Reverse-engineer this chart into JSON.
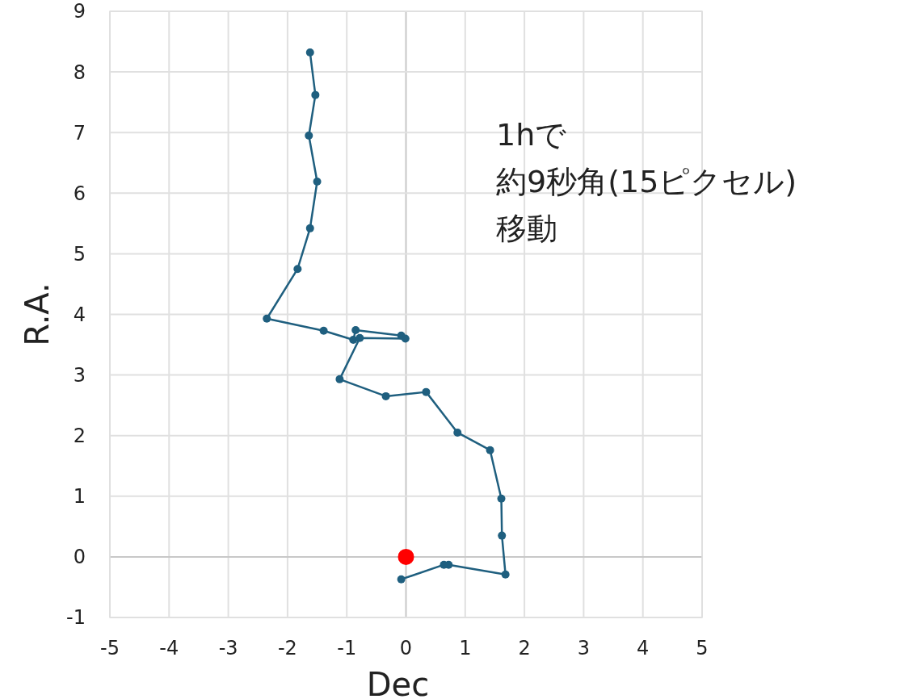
{
  "chart_data": {
    "type": "line",
    "xlabel": "Dec",
    "ylabel": "R.A.",
    "xlim": [
      -5,
      5
    ],
    "ylim": [
      -1,
      9
    ],
    "xticks": [
      -5,
      -4,
      -3,
      -2,
      -1,
      0,
      1,
      2,
      3,
      4,
      5
    ],
    "yticks": [
      -1,
      0,
      1,
      2,
      3,
      4,
      5,
      6,
      7,
      8,
      9
    ],
    "grid": true,
    "marker": "circle",
    "line_style": "solid",
    "annotations": [
      "1hで",
      "約9秒角(15ピクセル)",
      "移動"
    ],
    "series": [
      {
        "color": "#1f5f7f",
        "x": [
          -1.62,
          -1.53,
          -1.64,
          -1.5,
          -1.62,
          -1.83,
          -2.35,
          -1.39,
          -0.89,
          -0.85,
          -0.08,
          -0.01,
          -0.78,
          -1.12,
          -0.34,
          0.34,
          0.87,
          1.42,
          1.61,
          1.62,
          1.68,
          0.72,
          0.64,
          -0.08
        ],
        "values": [
          8.32,
          7.62,
          6.95,
          6.19,
          5.42,
          4.75,
          3.93,
          3.73,
          3.58,
          3.74,
          3.65,
          3.6,
          3.61,
          2.93,
          2.65,
          2.72,
          2.05,
          1.76,
          0.96,
          0.35,
          -0.29,
          -0.13,
          -0.13,
          -0.37
        ]
      },
      {
        "type": "scatter",
        "color": "#ff0000",
        "x": [
          0
        ],
        "values": [
          0
        ]
      }
    ]
  }
}
